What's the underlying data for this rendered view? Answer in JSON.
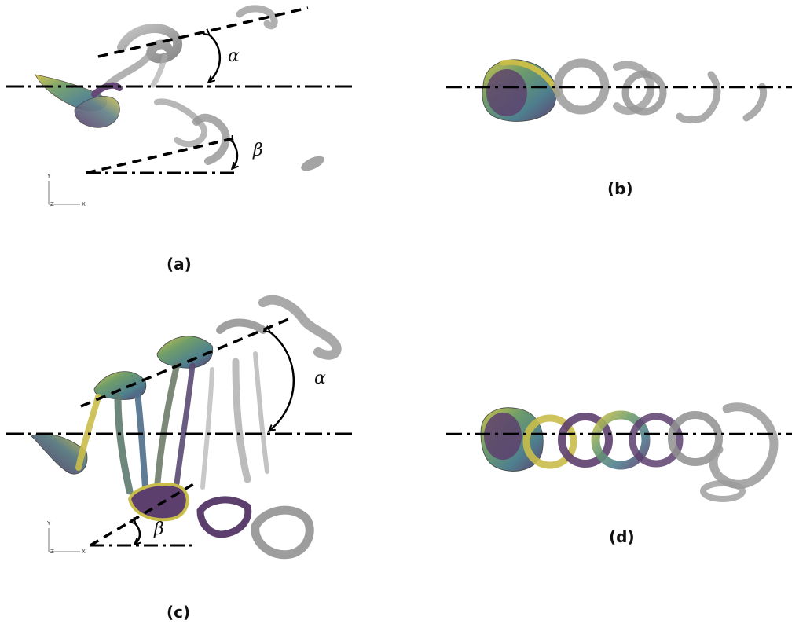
{
  "panels": {
    "a": {
      "label": "(a)",
      "angle_upper": "α",
      "angle_lower": "β"
    },
    "b": {
      "label": "(b)"
    },
    "c": {
      "label": "(c)",
      "angle_upper": "α",
      "angle_lower": "β"
    },
    "d": {
      "label": "(d)"
    }
  },
  "triad": {
    "y": "Y",
    "z": "Z",
    "x": "X"
  },
  "colors": {
    "vortex_grey": "#9a9a9a",
    "vortex_yellow": "#c9bd4a",
    "vortex_purple": "#5d3f6e",
    "vortex_teal": "#4f9a8c",
    "line": "#000000"
  }
}
